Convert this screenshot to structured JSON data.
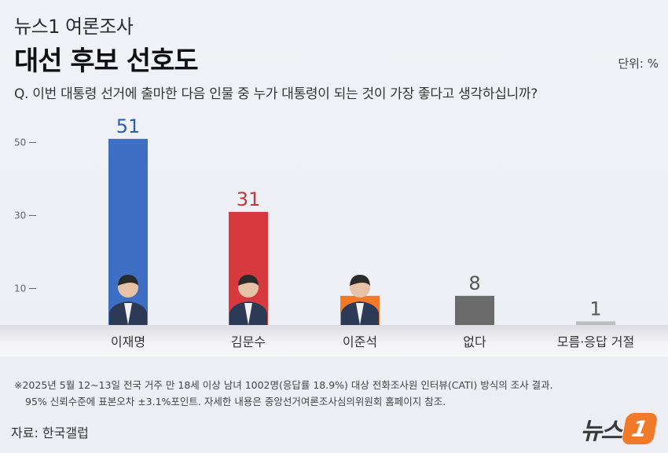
{
  "header": {
    "subtitle": "뉴스1 여론조사",
    "title": "대선 후보 선호도",
    "unit": "단위: %",
    "question": "Q. 이번 대통령 선거에 출마한 다음 인물 중 누가 대통령이 되는 것이 가장 좋다고 생각하십니까?"
  },
  "chart_data": {
    "type": "bar",
    "categories": [
      "이재명",
      "김문수",
      "이준석",
      "없다",
      "모름·응답 거절"
    ],
    "values": [
      51,
      31,
      8,
      8,
      1
    ],
    "colors": [
      "#3d6fc4",
      "#d63a3f",
      "#f07a2a",
      "#6b6b6b",
      "#bdbdbd"
    ],
    "label_colors": [
      "#2d5ea8",
      "#c0383c",
      "#e8772a",
      "#555555",
      "#555555"
    ],
    "yticks": [
      10,
      30,
      50
    ],
    "ylim": [
      0,
      60
    ],
    "grid": false,
    "legend": "none"
  },
  "footnote": {
    "line1": "※2025년 5월 12~13일 전국 거주 만 18세 이상 남녀 1002명(응답률 18.9%) 대상 전화조사원 인터뷰(CATI) 방식의 조사 결과.",
    "line2": "95% 신뢰수준에 표본오차 ±3.1%포인트. 자세한 내용은 중앙선거여론조사심의위원회 홈페이지 참조."
  },
  "source": "자료: 한국갤럽",
  "logo": {
    "text": "뉴스",
    "badge": "1"
  }
}
